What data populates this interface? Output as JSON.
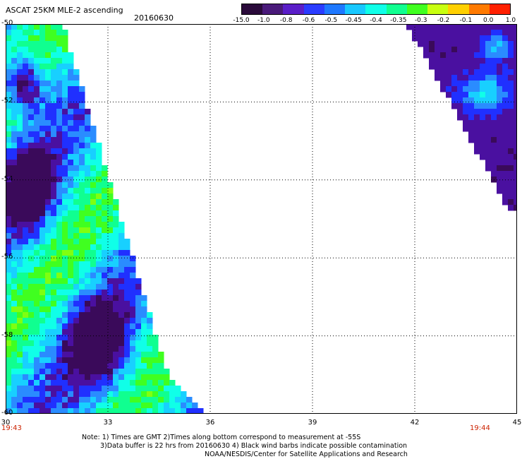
{
  "header": {
    "title": "ASCAT 25KM MLE-2 ascending",
    "date": "20160630"
  },
  "colorbar": {
    "labels": [
      "-15.0",
      "-1.0",
      "-0.8",
      "-0.6",
      "-0.5",
      "-0.45",
      "-0.4",
      "-0.35",
      "-0.3",
      "-0.2",
      "-0.1",
      "0.0",
      "1.0"
    ],
    "colors": [
      "#2a0a3a",
      "#4a1a7a",
      "#5a1ec8",
      "#2a3cff",
      "#1e78ff",
      "#18c8ff",
      "#10ffe8",
      "#10ff90",
      "#40ff20",
      "#c8ff10",
      "#ffd000",
      "#ff7a00",
      "#ff2000"
    ]
  },
  "map": {
    "lat_labels": [
      "-50",
      "-52",
      "-54",
      "-56",
      "-58",
      "-60"
    ],
    "lon_labels": [
      "30",
      "33",
      "36",
      "39",
      "42",
      "45"
    ],
    "lat_range": [
      -60,
      -50
    ],
    "lon_range": [
      30,
      45
    ],
    "grid": true
  },
  "times": {
    "left": "19:43",
    "right": "19:44"
  },
  "notes": {
    "line1": "Note: 1) Times are GMT 2)Times along bottom correspond to measurement at -55S",
    "line2": "3)Data buffer is 22 hrs from 20160630 4) Black wind barbs indicate possible contamination",
    "line3": "NOAA/NESDIS/Center for Satellite Applications and Research"
  }
}
